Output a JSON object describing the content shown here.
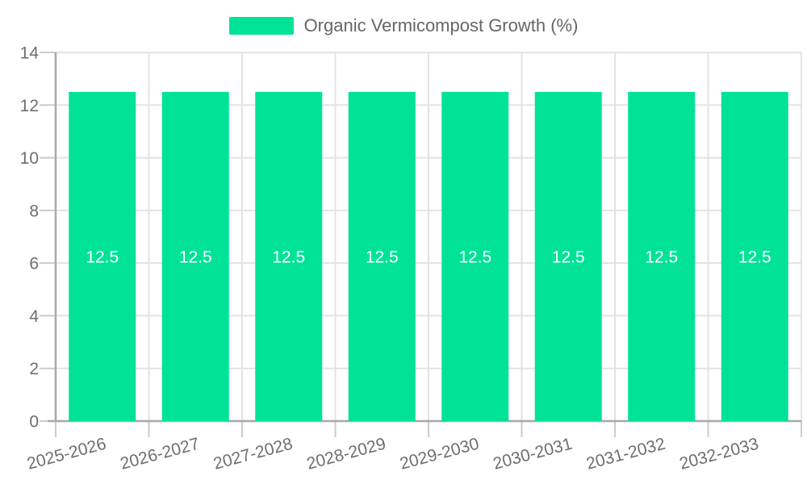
{
  "chart_data": {
    "type": "bar",
    "title": "",
    "legend": {
      "position": "top",
      "label": "Organic Vermicompost Growth (%)"
    },
    "categories": [
      "2025-2026",
      "2026-2027",
      "2027-2028",
      "2028-2029",
      "2029-2030",
      "2030-2031",
      "2031-2032",
      "2032-2033"
    ],
    "series": [
      {
        "name": "Organic Vermicompost Growth (%)",
        "values": [
          12.5,
          12.5,
          12.5,
          12.5,
          12.5,
          12.5,
          12.5,
          12.5
        ]
      }
    ],
    "xlabel": "",
    "ylabel": "",
    "ylim": [
      0,
      14
    ],
    "yticks": [
      0,
      2,
      4,
      6,
      8,
      10,
      12,
      14
    ],
    "grid": true,
    "x_label_rotation": -15,
    "colors": {
      "bar": "#00E396",
      "data_label": "#FFFFFF",
      "axis_label": "#6E6E6E",
      "legend_text": "#666666",
      "gridline": "#E3E3E3",
      "tick": "#CCCCCC",
      "axis_line": "#A8A8A8",
      "background": "#FFFFFF"
    }
  }
}
